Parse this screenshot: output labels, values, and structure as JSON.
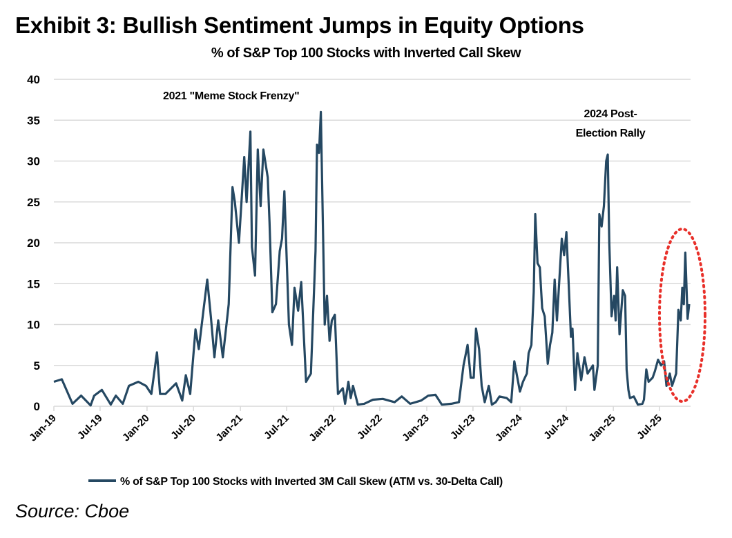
{
  "chart_data": {
    "type": "line",
    "title": "Exhibit 3: Bullish Sentiment Jumps in Equity Options",
    "subtitle": "% of S&P Top 100 Stocks with Inverted Call Skew",
    "source": "Source: Cboe",
    "xlabel": "",
    "ylabel": "",
    "ylim": [
      0,
      40
    ],
    "yticks": [
      0,
      5,
      10,
      15,
      20,
      25,
      30,
      35,
      40
    ],
    "xticks": [
      "Jan-19",
      "Jul-19",
      "Jan-20",
      "Jul-20",
      "Jan-21",
      "Jul-21",
      "Jan-22",
      "Jul-22",
      "Jan-23",
      "Jul-23",
      "Jan-24",
      "Jul-24",
      "Jan-25",
      "Jul-25"
    ],
    "xtick_dates": [
      "2019-01-01",
      "2019-07-01",
      "2020-01-01",
      "2020-07-01",
      "2021-01-01",
      "2021-07-01",
      "2022-01-01",
      "2022-07-01",
      "2023-01-01",
      "2023-07-01",
      "2024-01-01",
      "2024-07-01",
      "2025-01-01",
      "2025-07-01"
    ],
    "grid": "horizontal",
    "legend_position": "bottom",
    "colors": {
      "line": "#254862",
      "grid": "#d9d9d9",
      "highlight": "#e8302a"
    },
    "annotations": [
      {
        "lines": [
          "2021 \"Meme Stock Frenzy\""
        ]
      },
      {
        "lines": [
          "2024 Post-",
          "Election Rally"
        ]
      }
    ],
    "highlight": "red dotted ellipse around Sep-Oct 2025 rise",
    "series": [
      {
        "name": "% of S&P Top 100 Stocks with Inverted 3M Call Skew (ATM vs. 30-Delta Call)",
        "points": [
          [
            "2019-01-01",
            3
          ],
          [
            "2019-02-01",
            3.3
          ],
          [
            "2019-03-15",
            0.3
          ],
          [
            "2019-04-18",
            1.3
          ],
          [
            "2019-05-25",
            0.1
          ],
          [
            "2019-06-08",
            1.3
          ],
          [
            "2019-07-08",
            2
          ],
          [
            "2019-08-12",
            0.2
          ],
          [
            "2019-09-01",
            1.3
          ],
          [
            "2019-09-28",
            0.3
          ],
          [
            "2019-10-22",
            2.5
          ],
          [
            "2019-11-28",
            3
          ],
          [
            "2019-12-28",
            2.5
          ],
          [
            "2020-01-18",
            1.5
          ],
          [
            "2020-02-09",
            6.6
          ],
          [
            "2020-02-21",
            1.5
          ],
          [
            "2020-03-13",
            1.5
          ],
          [
            "2020-04-24",
            2.8
          ],
          [
            "2020-05-18",
            0.7
          ],
          [
            "2020-06-01",
            3.8
          ],
          [
            "2020-06-18",
            1.5
          ],
          [
            "2020-07-09",
            9.4
          ],
          [
            "2020-07-22",
            7
          ],
          [
            "2020-08-10",
            12
          ],
          [
            "2020-08-24",
            15.5
          ],
          [
            "2020-09-07",
            11
          ],
          [
            "2020-09-21",
            6
          ],
          [
            "2020-10-06",
            10.5
          ],
          [
            "2020-10-24",
            6
          ],
          [
            "2020-11-16",
            12.5
          ],
          [
            "2020-12-01",
            26.8
          ],
          [
            "2020-12-10",
            25
          ],
          [
            "2020-12-26",
            20
          ],
          [
            "2021-01-16",
            30.5
          ],
          [
            "2021-01-25",
            25
          ],
          [
            "2021-02-09",
            33.6
          ],
          [
            "2021-02-15",
            19.5
          ],
          [
            "2021-02-27",
            16
          ],
          [
            "2021-03-10",
            31.4
          ],
          [
            "2021-03-21",
            24.5
          ],
          [
            "2021-04-01",
            31.4
          ],
          [
            "2021-04-18",
            28
          ],
          [
            "2021-04-25",
            22.5
          ],
          [
            "2021-05-06",
            11.5
          ],
          [
            "2021-05-20",
            12.5
          ],
          [
            "2021-06-04",
            19
          ],
          [
            "2021-06-13",
            20.5
          ],
          [
            "2021-06-22",
            26.3
          ],
          [
            "2021-07-10",
            10
          ],
          [
            "2021-07-22",
            7.5
          ],
          [
            "2021-08-01",
            14.5
          ],
          [
            "2021-08-15",
            11.7
          ],
          [
            "2021-08-27",
            15.2
          ],
          [
            "2021-09-15",
            3
          ],
          [
            "2021-10-04",
            4
          ],
          [
            "2021-10-22",
            19
          ],
          [
            "2021-10-28",
            32
          ],
          [
            "2021-11-05",
            31
          ],
          [
            "2021-11-12",
            36
          ],
          [
            "2021-11-27",
            10
          ],
          [
            "2021-12-06",
            13.5
          ],
          [
            "2021-12-16",
            8
          ],
          [
            "2021-12-25",
            10.5
          ],
          [
            "2022-01-06",
            11.2
          ],
          [
            "2022-01-18",
            1.5
          ],
          [
            "2022-02-06",
            2.2
          ],
          [
            "2022-02-15",
            0.3
          ],
          [
            "2022-02-28",
            3
          ],
          [
            "2022-03-09",
            1
          ],
          [
            "2022-03-18",
            2.5
          ],
          [
            "2022-04-06",
            0.2
          ],
          [
            "2022-05-01",
            0.3
          ],
          [
            "2022-06-04",
            0.8
          ],
          [
            "2022-07-13",
            0.9
          ],
          [
            "2022-08-28",
            0.5
          ],
          [
            "2022-09-25",
            1.2
          ],
          [
            "2022-10-28",
            0.3
          ],
          [
            "2022-12-10",
            0.7
          ],
          [
            "2023-01-07",
            1.3
          ],
          [
            "2023-02-04",
            1.4
          ],
          [
            "2023-03-01",
            0.2
          ],
          [
            "2023-04-07",
            0.3
          ],
          [
            "2023-05-07",
            0.5
          ],
          [
            "2023-05-25",
            5
          ],
          [
            "2023-06-10",
            7.5
          ],
          [
            "2023-06-22",
            3.5
          ],
          [
            "2023-07-04",
            3.5
          ],
          [
            "2023-07-13",
            9.5
          ],
          [
            "2023-07-25",
            7
          ],
          [
            "2023-08-04",
            2.5
          ],
          [
            "2023-08-16",
            0.5
          ],
          [
            "2023-09-01",
            2.5
          ],
          [
            "2023-09-13",
            0.2
          ],
          [
            "2023-09-28",
            0.5
          ],
          [
            "2023-10-13",
            1.2
          ],
          [
            "2023-11-10",
            1
          ],
          [
            "2023-11-28",
            0.5
          ],
          [
            "2023-12-10",
            5.5
          ],
          [
            "2024-01-01",
            1.8
          ],
          [
            "2024-01-13",
            3
          ],
          [
            "2024-01-28",
            4
          ],
          [
            "2024-02-04",
            6.5
          ],
          [
            "2024-02-15",
            7.5
          ],
          [
            "2024-02-24",
            14
          ],
          [
            "2024-03-01",
            23.5
          ],
          [
            "2024-03-10",
            17.5
          ],
          [
            "2024-03-19",
            17
          ],
          [
            "2024-03-28",
            12
          ],
          [
            "2024-04-07",
            11
          ],
          [
            "2024-04-19",
            5.2
          ],
          [
            "2024-04-28",
            7.5
          ],
          [
            "2024-05-07",
            9
          ],
          [
            "2024-05-16",
            15.5
          ],
          [
            "2024-05-25",
            10.5
          ],
          [
            "2024-06-13",
            20.5
          ],
          [
            "2024-06-22",
            18.5
          ],
          [
            "2024-07-01",
            21.3
          ],
          [
            "2024-07-10",
            15
          ],
          [
            "2024-07-19",
            8.5
          ],
          [
            "2024-07-25",
            9.5
          ],
          [
            "2024-08-04",
            2
          ],
          [
            "2024-08-13",
            6.5
          ],
          [
            "2024-08-28",
            3.2
          ],
          [
            "2024-09-10",
            6
          ],
          [
            "2024-09-22",
            4
          ],
          [
            "2024-10-13",
            5
          ],
          [
            "2024-10-19",
            2
          ],
          [
            "2024-11-01",
            5
          ],
          [
            "2024-11-07",
            23.5
          ],
          [
            "2024-11-16",
            22
          ],
          [
            "2024-11-25",
            24.5
          ],
          [
            "2024-12-04",
            30
          ],
          [
            "2024-12-10",
            30.8
          ],
          [
            "2024-12-16",
            20
          ],
          [
            "2024-12-25",
            11
          ],
          [
            "2025-01-04",
            13.5
          ],
          [
            "2025-01-10",
            10.5
          ],
          [
            "2025-01-16",
            17
          ],
          [
            "2025-01-25",
            8.8
          ],
          [
            "2025-02-07",
            14.2
          ],
          [
            "2025-02-16",
            13.5
          ],
          [
            "2025-02-22",
            4.5
          ],
          [
            "2025-03-01",
            2
          ],
          [
            "2025-03-07",
            1
          ],
          [
            "2025-03-22",
            1.2
          ],
          [
            "2025-04-07",
            0.2
          ],
          [
            "2025-04-25",
            0.3
          ],
          [
            "2025-05-01",
            0.8
          ],
          [
            "2025-05-10",
            4.5
          ],
          [
            "2025-05-19",
            3
          ],
          [
            "2025-06-04",
            3.5
          ],
          [
            "2025-06-13",
            4.3
          ],
          [
            "2025-06-25",
            5.7
          ],
          [
            "2025-07-07",
            5
          ],
          [
            "2025-07-19",
            5.5
          ],
          [
            "2025-07-28",
            2.5
          ],
          [
            "2025-08-10",
            4
          ],
          [
            "2025-08-19",
            2.5
          ],
          [
            "2025-09-04",
            4
          ],
          [
            "2025-09-13",
            11.8
          ],
          [
            "2025-09-22",
            10.5
          ],
          [
            "2025-09-28",
            14.5
          ],
          [
            "2025-10-04",
            12.5
          ],
          [
            "2025-10-10",
            18.8
          ],
          [
            "2025-10-19",
            10.7
          ],
          [
            "2025-10-25",
            12.5
          ]
        ]
      }
    ]
  }
}
